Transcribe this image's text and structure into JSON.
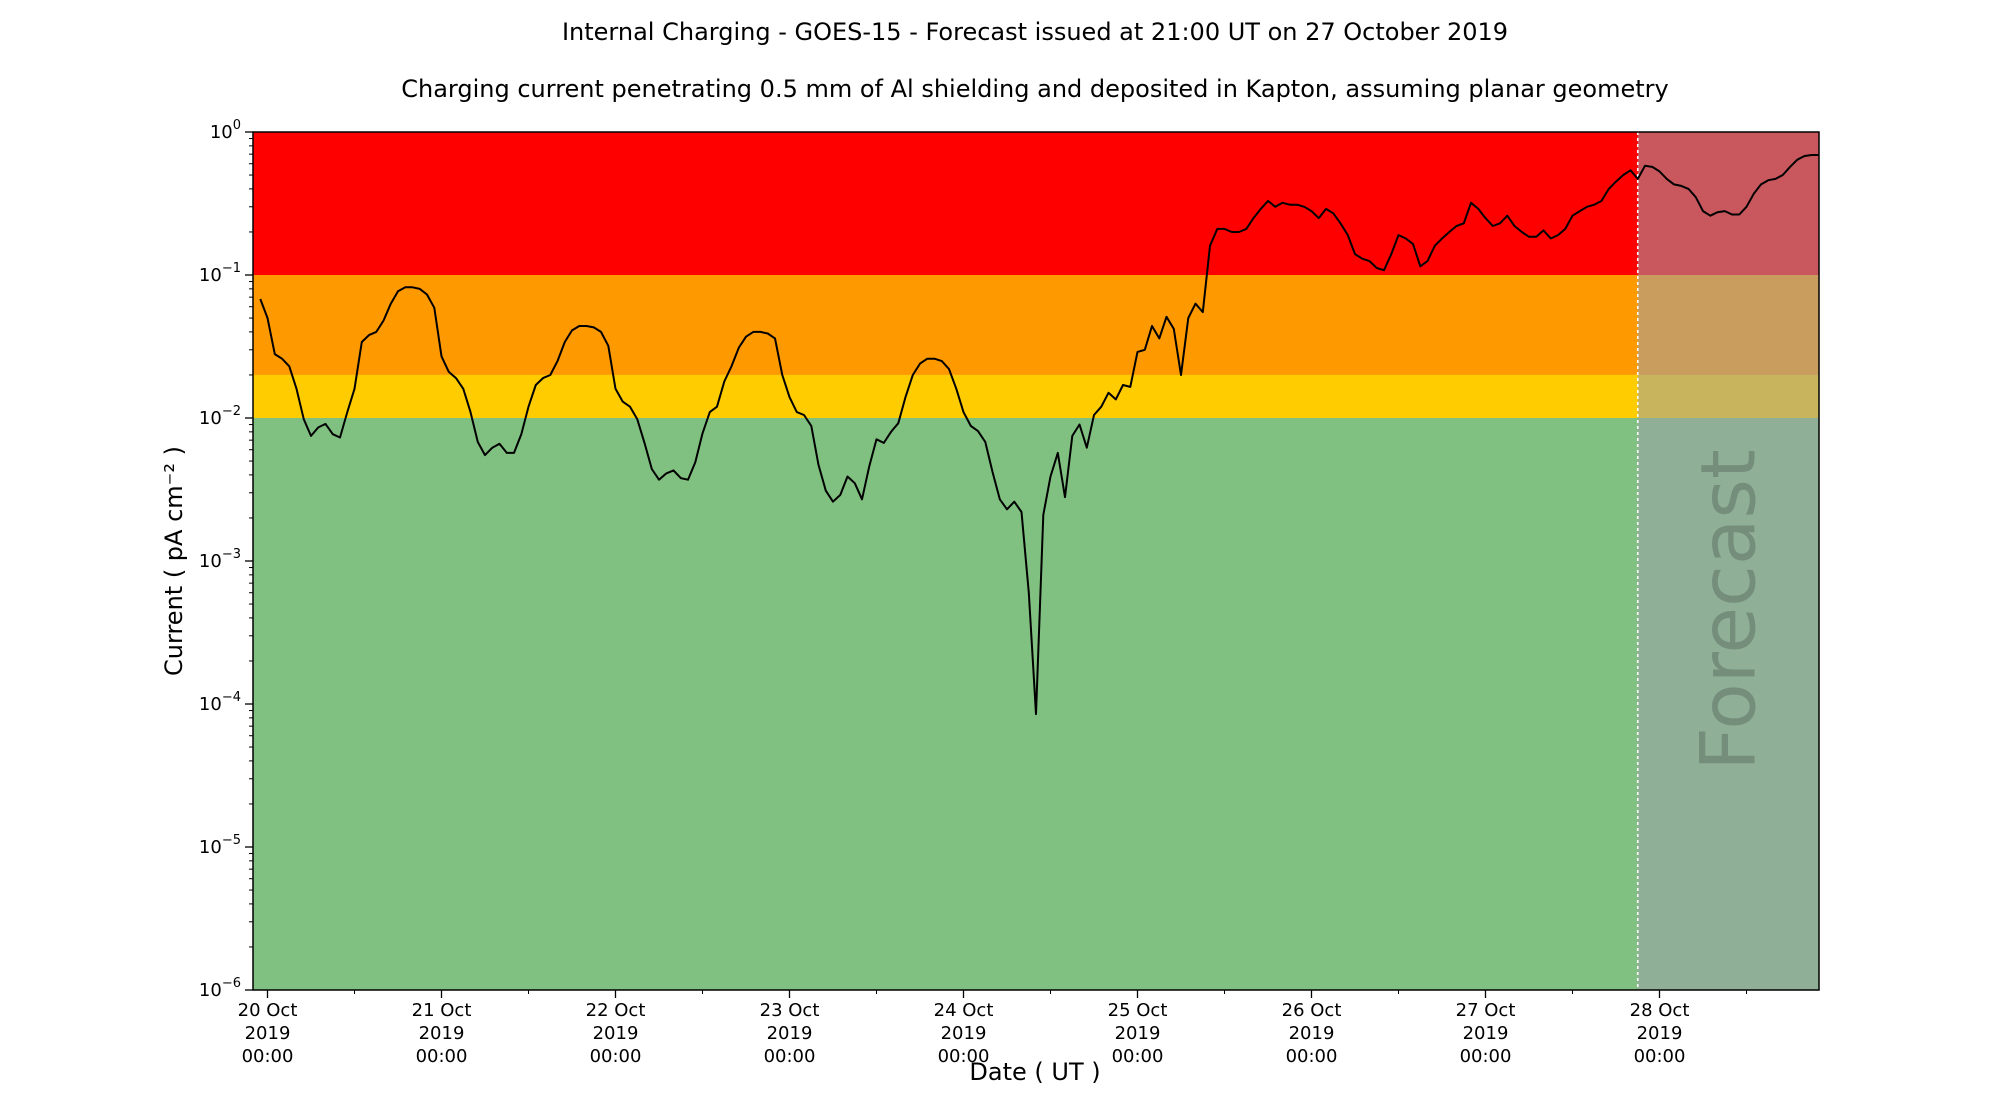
{
  "chart_data": {
    "type": "line",
    "title": "Internal Charging - GOES-15 - Forecast issued at 21:00 UT on 27 October 2019",
    "subtitle": "Charging current penetrating 0.5 mm of Al shielding and deposited in Kapton, assuming planar geometry",
    "xlabel": "Date ( UT )",
    "ylabel": "Current ( pA cm⁻² )",
    "yscale": "log",
    "xlim": [
      "2019-10-19T22:00",
      "2019-10-28T22:00"
    ],
    "ylim": [
      1e-06,
      1
    ],
    "forecast_start": "2019-10-27T21:00",
    "forecast_label": "Forecast",
    "grid": false,
    "legend": "none",
    "x_ticks": [
      {
        "lines": [
          "20 Oct",
          "2019",
          "00:00"
        ]
      },
      {
        "lines": [
          "21 Oct",
          "2019",
          "00:00"
        ]
      },
      {
        "lines": [
          "22 Oct",
          "2019",
          "00:00"
        ]
      },
      {
        "lines": [
          "23 Oct",
          "2019",
          "00:00"
        ]
      },
      {
        "lines": [
          "24 Oct",
          "2019",
          "00:00"
        ]
      },
      {
        "lines": [
          "25 Oct",
          "2019",
          "00:00"
        ]
      },
      {
        "lines": [
          "26 Oct",
          "2019",
          "00:00"
        ]
      },
      {
        "lines": [
          "27 Oct",
          "2019",
          "00:00"
        ]
      },
      {
        "lines": [
          "28 Oct",
          "2019",
          "00:00"
        ]
      }
    ],
    "y_ticks": [
      {
        "value": 1,
        "base": "10",
        "exp": "0"
      },
      {
        "value": 0.1,
        "base": "10",
        "exp": "−1"
      },
      {
        "value": 0.01,
        "base": "10",
        "exp": "−2"
      },
      {
        "value": 0.001,
        "base": "10",
        "exp": "−3"
      },
      {
        "value": 0.0001,
        "base": "10",
        "exp": "−4"
      },
      {
        "value": 1e-05,
        "base": "10",
        "exp": "−5"
      },
      {
        "value": 1e-06,
        "base": "10",
        "exp": "−6"
      }
    ],
    "bands": [
      {
        "from": 0.1,
        "to": 1,
        "color": "#ff0000"
      },
      {
        "from": 0.02,
        "to": 0.1,
        "color": "#ff9900"
      },
      {
        "from": 0.01,
        "to": 0.02,
        "color": "#ffcc00"
      },
      {
        "from": 1e-06,
        "to": 0.01,
        "color": "#80c080"
      }
    ],
    "forecast_shade_color": "#9aa0aa",
    "line_color": "#000000",
    "series": [
      {
        "values": [
          [
            "2019-10-19T23:00",
            0.068
          ],
          [
            "2019-10-20T00:00",
            0.05
          ],
          [
            "2019-10-20T01:00",
            0.028
          ],
          [
            "2019-10-20T02:00",
            0.026
          ],
          [
            "2019-10-20T03:00",
            0.023
          ],
          [
            "2019-10-20T04:00",
            0.016
          ],
          [
            "2019-10-20T05:00",
            0.0098
          ],
          [
            "2019-10-20T06:00",
            0.0075
          ],
          [
            "2019-10-20T07:00",
            0.0086
          ],
          [
            "2019-10-20T08:00",
            0.0091
          ],
          [
            "2019-10-20T09:00",
            0.0077
          ],
          [
            "2019-10-20T10:00",
            0.0073
          ],
          [
            "2019-10-20T11:00",
            0.011
          ],
          [
            "2019-10-20T12:00",
            0.016
          ],
          [
            "2019-10-20T13:00",
            0.034
          ],
          [
            "2019-10-20T14:00",
            0.038
          ],
          [
            "2019-10-20T15:00",
            0.04
          ],
          [
            "2019-10-20T16:00",
            0.048
          ],
          [
            "2019-10-20T17:00",
            0.063
          ],
          [
            "2019-10-20T18:00",
            0.077
          ],
          [
            "2019-10-20T19:00",
            0.082
          ],
          [
            "2019-10-20T20:00",
            0.082
          ],
          [
            "2019-10-20T21:00",
            0.08
          ],
          [
            "2019-10-20T22:00",
            0.073
          ],
          [
            "2019-10-20T23:00",
            0.059
          ],
          [
            "2019-10-21T00:00",
            0.027
          ],
          [
            "2019-10-21T01:00",
            0.021
          ],
          [
            "2019-10-21T02:00",
            0.019
          ],
          [
            "2019-10-21T03:00",
            0.016
          ],
          [
            "2019-10-21T04:00",
            0.011
          ],
          [
            "2019-10-21T05:00",
            0.0068
          ],
          [
            "2019-10-21T06:00",
            0.0055
          ],
          [
            "2019-10-21T07:00",
            0.0062
          ],
          [
            "2019-10-21T08:00",
            0.0066
          ],
          [
            "2019-10-21T09:00",
            0.0057
          ],
          [
            "2019-10-21T10:00",
            0.0057
          ],
          [
            "2019-10-21T11:00",
            0.0077
          ],
          [
            "2019-10-21T12:00",
            0.012
          ],
          [
            "2019-10-21T13:00",
            0.017
          ],
          [
            "2019-10-21T14:00",
            0.019
          ],
          [
            "2019-10-21T15:00",
            0.02
          ],
          [
            "2019-10-21T16:00",
            0.025
          ],
          [
            "2019-10-21T17:00",
            0.034
          ],
          [
            "2019-10-21T18:00",
            0.041
          ],
          [
            "2019-10-21T19:00",
            0.044
          ],
          [
            "2019-10-21T20:00",
            0.044
          ],
          [
            "2019-10-21T21:00",
            0.043
          ],
          [
            "2019-10-21T22:00",
            0.04
          ],
          [
            "2019-10-21T23:00",
            0.032
          ],
          [
            "2019-10-22T00:00",
            0.016
          ],
          [
            "2019-10-22T01:00",
            0.013
          ],
          [
            "2019-10-22T02:00",
            0.012
          ],
          [
            "2019-10-22T03:00",
            0.0098
          ],
          [
            "2019-10-22T04:00",
            0.0067
          ],
          [
            "2019-10-22T05:00",
            0.0044
          ],
          [
            "2019-10-22T06:00",
            0.0037
          ],
          [
            "2019-10-22T07:00",
            0.0041
          ],
          [
            "2019-10-22T08:00",
            0.0043
          ],
          [
            "2019-10-22T09:00",
            0.0038
          ],
          [
            "2019-10-22T10:00",
            0.0037
          ],
          [
            "2019-10-22T11:00",
            0.0049
          ],
          [
            "2019-10-22T12:00",
            0.0078
          ],
          [
            "2019-10-22T13:00",
            0.011
          ],
          [
            "2019-10-22T14:00",
            0.012
          ],
          [
            "2019-10-22T15:00",
            0.018
          ],
          [
            "2019-10-22T16:00",
            0.023
          ],
          [
            "2019-10-22T17:00",
            0.031
          ],
          [
            "2019-10-22T18:00",
            0.037
          ],
          [
            "2019-10-22T19:00",
            0.04
          ],
          [
            "2019-10-22T20:00",
            0.04
          ],
          [
            "2019-10-22T21:00",
            0.039
          ],
          [
            "2019-10-22T22:00",
            0.036
          ],
          [
            "2019-10-22T23:00",
            0.02
          ],
          [
            "2019-10-23T00:00",
            0.014
          ],
          [
            "2019-10-23T01:00",
            0.011
          ],
          [
            "2019-10-23T02:00",
            0.0105
          ],
          [
            "2019-10-23T03:00",
            0.0088
          ],
          [
            "2019-10-23T04:00",
            0.0047
          ],
          [
            "2019-10-23T05:00",
            0.0031
          ],
          [
            "2019-10-23T06:00",
            0.0026
          ],
          [
            "2019-10-23T07:00",
            0.0029
          ],
          [
            "2019-10-23T08:00",
            0.0039
          ],
          [
            "2019-10-23T09:00",
            0.0035
          ],
          [
            "2019-10-23T10:00",
            0.0027
          ],
          [
            "2019-10-23T11:00",
            0.0046
          ],
          [
            "2019-10-23T12:00",
            0.0071
          ],
          [
            "2019-10-23T13:00",
            0.0067
          ],
          [
            "2019-10-23T14:00",
            0.008
          ],
          [
            "2019-10-23T15:00",
            0.0092
          ],
          [
            "2019-10-23T16:00",
            0.014
          ],
          [
            "2019-10-23T17:00",
            0.02
          ],
          [
            "2019-10-23T18:00",
            0.024
          ],
          [
            "2019-10-23T19:00",
            0.026
          ],
          [
            "2019-10-23T20:00",
            0.026
          ],
          [
            "2019-10-23T21:00",
            0.025
          ],
          [
            "2019-10-23T22:00",
            0.022
          ],
          [
            "2019-10-23T23:00",
            0.016
          ],
          [
            "2019-10-24T00:00",
            0.011
          ],
          [
            "2019-10-24T01:00",
            0.0088
          ],
          [
            "2019-10-24T02:00",
            0.0081
          ],
          [
            "2019-10-24T03:00",
            0.0068
          ],
          [
            "2019-10-24T04:00",
            0.0042
          ],
          [
            "2019-10-24T05:00",
            0.0027
          ],
          [
            "2019-10-24T06:00",
            0.0023
          ],
          [
            "2019-10-24T07:00",
            0.0026
          ],
          [
            "2019-10-24T08:00",
            0.0022
          ],
          [
            "2019-10-24T09:00",
            0.0006
          ],
          [
            "2019-10-24T10:00",
            8.5e-05
          ],
          [
            "2019-10-24T11:00",
            0.0021
          ],
          [
            "2019-10-24T12:00",
            0.0039
          ],
          [
            "2019-10-24T13:00",
            0.0057
          ],
          [
            "2019-10-24T14:00",
            0.0028
          ],
          [
            "2019-10-24T15:00",
            0.0075
          ],
          [
            "2019-10-24T16:00",
            0.009
          ],
          [
            "2019-10-24T17:00",
            0.0062
          ],
          [
            "2019-10-24T18:00",
            0.0105
          ],
          [
            "2019-10-24T19:00",
            0.012
          ],
          [
            "2019-10-24T20:00",
            0.015
          ],
          [
            "2019-10-24T21:00",
            0.0135
          ],
          [
            "2019-10-24T22:00",
            0.017
          ],
          [
            "2019-10-24T23:00",
            0.0165
          ],
          [
            "2019-10-25T00:00",
            0.029
          ],
          [
            "2019-10-25T01:00",
            0.03
          ],
          [
            "2019-10-25T02:00",
            0.044
          ],
          [
            "2019-10-25T03:00",
            0.036
          ],
          [
            "2019-10-25T04:00",
            0.051
          ],
          [
            "2019-10-25T05:00",
            0.042
          ],
          [
            "2019-10-25T06:00",
            0.02
          ],
          [
            "2019-10-25T07:00",
            0.05
          ],
          [
            "2019-10-25T08:00",
            0.063
          ],
          [
            "2019-10-25T09:00",
            0.055
          ],
          [
            "2019-10-25T10:00",
            0.16
          ],
          [
            "2019-10-25T11:00",
            0.21
          ],
          [
            "2019-10-25T12:00",
            0.21
          ],
          [
            "2019-10-25T13:00",
            0.2
          ],
          [
            "2019-10-25T14:00",
            0.2
          ],
          [
            "2019-10-25T15:00",
            0.21
          ],
          [
            "2019-10-25T16:00",
            0.25
          ],
          [
            "2019-10-25T17:00",
            0.29
          ],
          [
            "2019-10-25T18:00",
            0.33
          ],
          [
            "2019-10-25T19:00",
            0.3
          ],
          [
            "2019-10-25T20:00",
            0.32
          ],
          [
            "2019-10-25T21:00",
            0.31
          ],
          [
            "2019-10-25T22:00",
            0.31
          ],
          [
            "2019-10-25T23:00",
            0.3
          ],
          [
            "2019-10-26T00:00",
            0.28
          ],
          [
            "2019-10-26T01:00",
            0.25
          ],
          [
            "2019-10-26T02:00",
            0.29
          ],
          [
            "2019-10-26T03:00",
            0.27
          ],
          [
            "2019-10-26T04:00",
            0.23
          ],
          [
            "2019-10-26T05:00",
            0.19
          ],
          [
            "2019-10-26T06:00",
            0.14
          ],
          [
            "2019-10-26T07:00",
            0.13
          ],
          [
            "2019-10-26T08:00",
            0.125
          ],
          [
            "2019-10-26T09:00",
            0.112
          ],
          [
            "2019-10-26T10:00",
            0.108
          ],
          [
            "2019-10-26T11:00",
            0.14
          ],
          [
            "2019-10-26T12:00",
            0.19
          ],
          [
            "2019-10-26T13:00",
            0.18
          ],
          [
            "2019-10-26T14:00",
            0.165
          ],
          [
            "2019-10-26T15:00",
            0.115
          ],
          [
            "2019-10-26T16:00",
            0.125
          ],
          [
            "2019-10-26T17:00",
            0.16
          ],
          [
            "2019-10-26T18:00",
            0.18
          ],
          [
            "2019-10-26T19:00",
            0.2
          ],
          [
            "2019-10-26T20:00",
            0.22
          ],
          [
            "2019-10-26T21:00",
            0.23
          ],
          [
            "2019-10-26T22:00",
            0.32
          ],
          [
            "2019-10-26T23:00",
            0.29
          ],
          [
            "2019-10-27T00:00",
            0.25
          ],
          [
            "2019-10-27T01:00",
            0.22
          ],
          [
            "2019-10-27T02:00",
            0.23
          ],
          [
            "2019-10-27T03:00",
            0.26
          ],
          [
            "2019-10-27T04:00",
            0.22
          ],
          [
            "2019-10-27T05:00",
            0.2
          ],
          [
            "2019-10-27T06:00",
            0.185
          ],
          [
            "2019-10-27T07:00",
            0.185
          ],
          [
            "2019-10-27T08:00",
            0.205
          ],
          [
            "2019-10-27T09:00",
            0.18
          ],
          [
            "2019-10-27T10:00",
            0.19
          ],
          [
            "2019-10-27T11:00",
            0.21
          ],
          [
            "2019-10-27T12:00",
            0.26
          ],
          [
            "2019-10-27T13:00",
            0.28
          ],
          [
            "2019-10-27T14:00",
            0.3
          ],
          [
            "2019-10-27T15:00",
            0.31
          ],
          [
            "2019-10-27T16:00",
            0.33
          ],
          [
            "2019-10-27T17:00",
            0.4
          ],
          [
            "2019-10-27T18:00",
            0.45
          ],
          [
            "2019-10-27T19:00",
            0.5
          ],
          [
            "2019-10-27T20:00",
            0.54
          ],
          [
            "2019-10-27T21:00",
            0.47
          ],
          [
            "2019-10-27T22:00",
            0.58
          ],
          [
            "2019-10-27T23:00",
            0.57
          ],
          [
            "2019-10-28T00:00",
            0.53
          ],
          [
            "2019-10-28T01:00",
            0.47
          ],
          [
            "2019-10-28T02:00",
            0.43
          ],
          [
            "2019-10-28T03:00",
            0.42
          ],
          [
            "2019-10-28T04:00",
            0.4
          ],
          [
            "2019-10-28T05:00",
            0.35
          ],
          [
            "2019-10-28T06:00",
            0.28
          ],
          [
            "2019-10-28T07:00",
            0.26
          ],
          [
            "2019-10-28T08:00",
            0.275
          ],
          [
            "2019-10-28T09:00",
            0.28
          ],
          [
            "2019-10-28T10:00",
            0.265
          ],
          [
            "2019-10-28T11:00",
            0.265
          ],
          [
            "2019-10-28T12:00",
            0.3
          ],
          [
            "2019-10-28T13:00",
            0.37
          ],
          [
            "2019-10-28T14:00",
            0.43
          ],
          [
            "2019-10-28T15:00",
            0.46
          ],
          [
            "2019-10-28T16:00",
            0.47
          ],
          [
            "2019-10-28T17:00",
            0.5
          ],
          [
            "2019-10-28T18:00",
            0.57
          ],
          [
            "2019-10-28T19:00",
            0.64
          ],
          [
            "2019-10-28T20:00",
            0.68
          ],
          [
            "2019-10-28T21:00",
            0.69
          ],
          [
            "2019-10-28T22:00",
            0.69
          ]
        ]
      }
    ]
  }
}
